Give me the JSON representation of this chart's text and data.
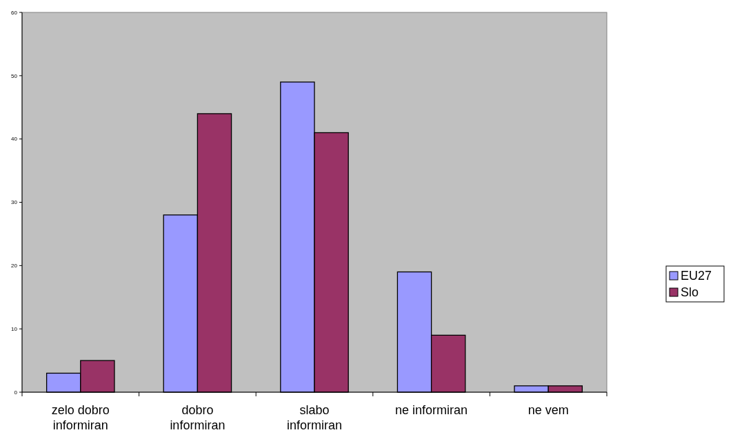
{
  "chart_data": {
    "type": "bar",
    "categories": [
      "zelo dobro informiran",
      "dobro informiran",
      "slabo informiran",
      "ne informiran",
      "ne vem"
    ],
    "series": [
      {
        "name": "EU27",
        "color": "#9999ff",
        "values": [
          3,
          28,
          49,
          19,
          1
        ]
      },
      {
        "name": "Slo",
        "color": "#993366",
        "values": [
          5,
          44,
          41,
          9,
          1
        ]
      }
    ],
    "ylim": [
      0,
      60
    ],
    "yticks": [
      0,
      10,
      20,
      30,
      40,
      50,
      60
    ],
    "grid": false,
    "legend": "right"
  }
}
